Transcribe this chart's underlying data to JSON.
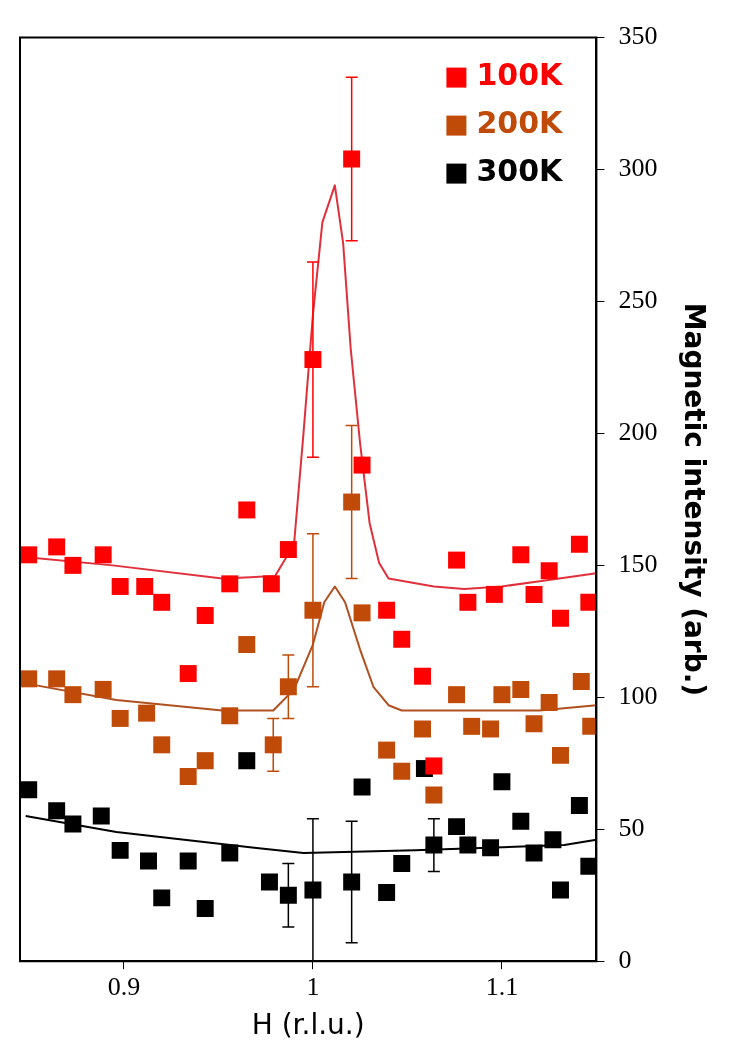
{
  "chart_data": {
    "type": "scatter",
    "xlabel": "H (r.l.u.)",
    "ylabel": "Magnetic intensity (arb.)",
    "xlim": [
      0.845,
      1.15
    ],
    "xticks": [
      0.9,
      1,
      1.1
    ],
    "ylim": [
      0,
      350
    ],
    "yticks": [
      0,
      50,
      100,
      150,
      200,
      250,
      300,
      350
    ],
    "grid": false,
    "legend": "top right",
    "marker": "square",
    "series": [
      {
        "name": "100K",
        "color": "#ff0000",
        "x": [
          0.8496,
          0.8644,
          0.873,
          0.889,
          0.898,
          0.911,
          0.92,
          0.934,
          0.943,
          0.956,
          0.965,
          0.978,
          0.987,
          1.0,
          1.0205,
          1.026,
          1.039,
          1.047,
          1.058,
          1.064,
          1.076,
          1.082,
          1.096,
          1.11,
          1.117,
          1.125,
          1.131,
          1.141,
          1.146
        ],
        "values": [
          154,
          157,
          150,
          154,
          142,
          142,
          136,
          109,
          131,
          143,
          171,
          143,
          156,
          228,
          304,
          188,
          133,
          122,
          108,
          74,
          152,
          136,
          139,
          154,
          139,
          148,
          130,
          158,
          136
        ],
        "errors": [
          null,
          null,
          null,
          null,
          null,
          null,
          null,
          null,
          null,
          null,
          null,
          null,
          null,
          37,
          31,
          null,
          null,
          null,
          null,
          null,
          null,
          null,
          null,
          null,
          null,
          null,
          null,
          null,
          null
        ]
      },
      {
        "name": "200K",
        "color": "#c04a08",
        "x": [
          0.8496,
          0.8644,
          0.873,
          0.889,
          0.898,
          0.912,
          0.92,
          0.934,
          0.943,
          0.956,
          0.965,
          0.979,
          0.987,
          1.0,
          1.0205,
          1.026,
          1.039,
          1.047,
          1.058,
          1.064,
          1.076,
          1.084,
          1.094,
          1.1,
          1.11,
          1.117,
          1.125,
          1.131,
          1.142,
          1.147
        ],
        "values": [
          107,
          107,
          101,
          103,
          92,
          94,
          82,
          70,
          76,
          93,
          120,
          82,
          104,
          133,
          174,
          132,
          80,
          72,
          88,
          63,
          101,
          89,
          88,
          101,
          103,
          90,
          98,
          78,
          106,
          89
        ],
        "errors": [
          null,
          null,
          null,
          null,
          null,
          null,
          null,
          null,
          null,
          null,
          null,
          10,
          12,
          29,
          29,
          null,
          null,
          null,
          null,
          null,
          null,
          null,
          null,
          null,
          null,
          null,
          null,
          null,
          null,
          null
        ]
      },
      {
        "name": "300K",
        "color": "#000000",
        "x": [
          0.8496,
          0.8644,
          0.873,
          0.888,
          0.898,
          0.913,
          0.92,
          0.934,
          0.943,
          0.956,
          0.965,
          0.977,
          0.987,
          1.0,
          1.0205,
          1.026,
          1.039,
          1.047,
          1.059,
          1.064,
          1.076,
          1.082,
          1.094,
          1.1,
          1.11,
          1.117,
          1.127,
          1.131,
          1.141,
          1.146
        ],
        "values": [
          65,
          57,
          52,
          55,
          42,
          38,
          24,
          38,
          20,
          41,
          76,
          30,
          25,
          27,
          30,
          66,
          26,
          37,
          73,
          44,
          51,
          44,
          43,
          68,
          53,
          41,
          46,
          27,
          59,
          36
        ],
        "errors": [
          null,
          null,
          null,
          null,
          null,
          null,
          null,
          null,
          null,
          null,
          null,
          null,
          12,
          27,
          23,
          null,
          null,
          null,
          null,
          10,
          null,
          null,
          null,
          null,
          null,
          null,
          null,
          null,
          null,
          null
        ]
      },
      {
        "type": "line",
        "marker": "none",
        "color": "#e0303c",
        "x": [
          0.85,
          0.894,
          0.952,
          0.98,
          0.99,
          0.995,
          1.0,
          1.005,
          1.0116,
          1.016,
          1.02,
          1.025,
          1.03,
          1.035,
          1.04,
          1.064,
          1.08,
          1.1,
          1.12,
          1.15
        ],
        "values": [
          153,
          150,
          145,
          146,
          158,
          200,
          245,
          280,
          294,
          272,
          232,
          196,
          166,
          151,
          145,
          142,
          141,
          142,
          144,
          147
        ]
      },
      {
        "type": "line",
        "marker": "none",
        "color": "#b05020",
        "x": [
          0.85,
          0.896,
          0.952,
          0.979,
          0.99,
          1.0,
          1.006,
          1.0116,
          1.017,
          1.025,
          1.032,
          1.04,
          1.047,
          1.08,
          1.12,
          1.15
        ],
        "values": [
          105,
          99,
          95,
          95,
          103,
          120,
          136,
          142,
          136,
          118,
          104,
          97,
          95,
          95,
          95,
          97
        ]
      },
      {
        "type": "line",
        "marker": "none",
        "color": "#000000",
        "x": [
          0.848,
          0.896,
          0.969,
          0.995,
          1.054,
          1.133,
          1.15
        ],
        "values": [
          55,
          49,
          43,
          41,
          42,
          44,
          46
        ]
      }
    ]
  }
}
